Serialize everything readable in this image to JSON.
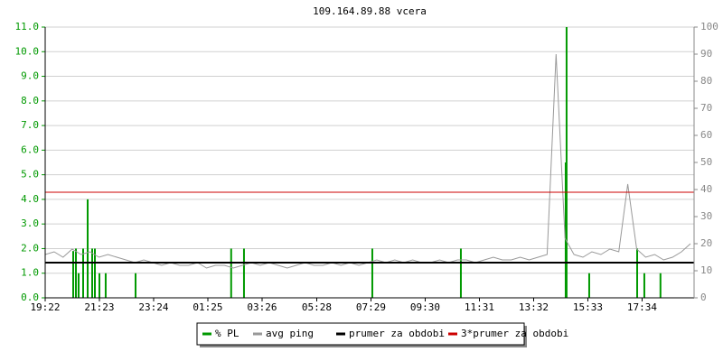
{
  "chart_data": {
    "type": "line",
    "title": "109.164.89.88 vcera",
    "xlim": [
      0,
      1448
    ],
    "xticks": [
      {
        "value": 0,
        "label": "19:22"
      },
      {
        "value": 121,
        "label": "21:23"
      },
      {
        "value": 242,
        "label": "23:24"
      },
      {
        "value": 363,
        "label": "01:25"
      },
      {
        "value": 484,
        "label": "03:26"
      },
      {
        "value": 606,
        "label": "05:28"
      },
      {
        "value": 727,
        "label": "07:29"
      },
      {
        "value": 848,
        "label": "09:30"
      },
      {
        "value": 969,
        "label": "11:31"
      },
      {
        "value": 1090,
        "label": "13:32"
      },
      {
        "value": 1211,
        "label": "15:33"
      },
      {
        "value": 1332,
        "label": "17:34"
      }
    ],
    "ylim": [
      0,
      11
    ],
    "yticks": [
      {
        "value": 0,
        "label": "0.0"
      },
      {
        "value": 1,
        "label": "1.0"
      },
      {
        "value": 2,
        "label": "2.0"
      },
      {
        "value": 3,
        "label": "3.0"
      },
      {
        "value": 4,
        "label": "4.0"
      },
      {
        "value": 5,
        "label": "5.0"
      },
      {
        "value": 6,
        "label": "6.0"
      },
      {
        "value": 7,
        "label": "7.0"
      },
      {
        "value": 8,
        "label": "8.0"
      },
      {
        "value": 9,
        "label": "9.0"
      },
      {
        "value": 10,
        "label": "10.0"
      },
      {
        "value": 11,
        "label": "11.0"
      }
    ],
    "y2lim": [
      0,
      100
    ],
    "y2ticks": [
      0,
      10,
      20,
      30,
      40,
      50,
      60,
      70,
      80,
      90,
      100
    ],
    "grid": true,
    "legend": "bottom",
    "series": [
      {
        "name": "% PL",
        "color": "#009900",
        "style": "bar",
        "x": [
          62.5,
          68.6,
          74.6,
          84.7,
          94.8,
          104.9,
          110.9,
          121,
          135,
          201.7,
          415,
          443.6,
          730,
          927.6,
          1161.5,
          1163.5,
          1214,
          1321,
          1337,
          1373
        ],
        "values": [
          1.9,
          2.0,
          1.0,
          2.0,
          4.0,
          2.0,
          2.0,
          1.0,
          1.0,
          1.0,
          2.0,
          2.0,
          2.0,
          2.0,
          5.5,
          11.0,
          1.0,
          2.0,
          1.0,
          1.0
        ]
      },
      {
        "name": "avg ping",
        "color": "#999999",
        "style": "line",
        "axis": "y2",
        "x": [
          0,
          20,
          40,
          60,
          80,
          100,
          120,
          140,
          160,
          180,
          200,
          220,
          240,
          260,
          280,
          300,
          320,
          340,
          360,
          380,
          400,
          420,
          440,
          460,
          480,
          500,
          520,
          540,
          560,
          580,
          600,
          620,
          640,
          660,
          680,
          700,
          720,
          740,
          760,
          780,
          800,
          820,
          840,
          860,
          880,
          900,
          920,
          940,
          960,
          980,
          1000,
          1020,
          1040,
          1060,
          1080,
          1100,
          1120,
          1140,
          1160,
          1180,
          1200,
          1220,
          1240,
          1260,
          1280,
          1300,
          1320,
          1340,
          1360,
          1380,
          1400,
          1420,
          1440
        ],
        "values": [
          16,
          17,
          15,
          18,
          16,
          17,
          15,
          16,
          15,
          14,
          13,
          14,
          13,
          12,
          13,
          12,
          12,
          13,
          11,
          12,
          12,
          11,
          12,
          13,
          12,
          13,
          12,
          11,
          12,
          13,
          12,
          12,
          13,
          12,
          13,
          12,
          13,
          14,
          13,
          14,
          13,
          14,
          13,
          13,
          14,
          13,
          14,
          14,
          13,
          14,
          15,
          14,
          14,
          15,
          14,
          15,
          16,
          90,
          22,
          16,
          15,
          17,
          16,
          18,
          17,
          42,
          18,
          15,
          16,
          14,
          15,
          17,
          20
        ]
      },
      {
        "name": "prumer za obdobi",
        "color": "#000000",
        "style": "hline",
        "axis": "y2",
        "values": [
          13
        ]
      },
      {
        "name": "3*prumer za obdobi",
        "color": "#cc0000",
        "style": "hline",
        "axis": "y2",
        "values": [
          39
        ]
      }
    ]
  }
}
